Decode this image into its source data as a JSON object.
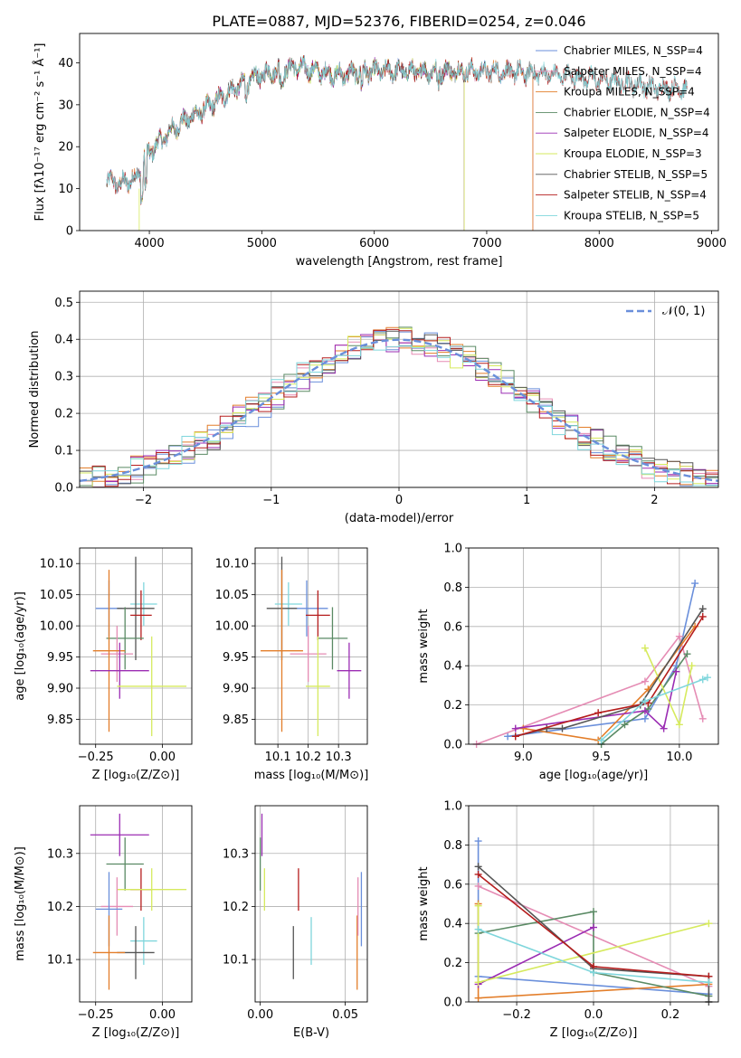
{
  "chart_data": [
    {
      "id": "spectrum",
      "type": "line",
      "title": "PLATE=0887, MJD=52376, FIBERID=0254, z=0.046",
      "xlabel": "wavelength [Angstrom, rest frame]",
      "ylabel": "Flux [fλ10⁻¹⁷ erg cm⁻² s⁻¹ Å⁻¹]",
      "xlim": [
        3380,
        9060
      ],
      "ylim": [
        0,
        47
      ],
      "xticks": [
        4000,
        5000,
        6000,
        7000,
        8000,
        9000
      ],
      "yticks": [
        0,
        10,
        20,
        30,
        40
      ],
      "legend_position": "top-right",
      "series": [
        {
          "name": "Chabrier MILES, N_SSP=4",
          "color": "#6a8fdb",
          "x_range": [
            3620,
            7410
          ]
        },
        {
          "name": "Salpeter MILES, N_SSP=4",
          "color": "#e58cb4",
          "x_range": [
            3620,
            7410
          ]
        },
        {
          "name": "Kroupa MILES, N_SSP=4",
          "color": "#e37e2a",
          "x_range": [
            3620,
            7410
          ]
        },
        {
          "name": "Chabrier ELODIE, N_SSP=4",
          "color": "#5a8a64",
          "x_range": [
            3900,
            6800
          ]
        },
        {
          "name": "Salpeter ELODIE, N_SSP=4",
          "color": "#9b2db3",
          "x_range": [
            3900,
            6800
          ]
        },
        {
          "name": "Kroupa ELODIE, N_SSP=3",
          "color": "#d6ea5e",
          "x_range": [
            3900,
            6800
          ]
        },
        {
          "name": "Chabrier STELIB, N_SSP=5",
          "color": "#555555",
          "x_range": [
            3620,
            8780
          ]
        },
        {
          "name": "Salpeter STELIB, N_SSP=4",
          "color": "#b51d1d",
          "x_range": [
            3620,
            8780
          ]
        },
        {
          "name": "Kroupa STELIB, N_SSP=5",
          "color": "#7fd6dc",
          "x_range": [
            3620,
            8780
          ]
        }
      ],
      "continuum": [
        [
          3620,
          12
        ],
        [
          3750,
          11
        ],
        [
          3900,
          13
        ],
        [
          3950,
          17
        ],
        [
          4050,
          20
        ],
        [
          4200,
          24
        ],
        [
          4300,
          26
        ],
        [
          4500,
          29
        ],
        [
          4700,
          33
        ],
        [
          4900,
          36
        ],
        [
          5100,
          38
        ],
        [
          5300,
          39
        ],
        [
          5500,
          38
        ],
        [
          5700,
          37
        ],
        [
          5900,
          38
        ],
        [
          6100,
          38
        ],
        [
          6300,
          38
        ],
        [
          6500,
          38
        ],
        [
          6700,
          38
        ],
        [
          6900,
          38
        ],
        [
          7100,
          38
        ],
        [
          7400,
          37.5
        ],
        [
          7700,
          37
        ],
        [
          8000,
          36
        ],
        [
          8300,
          35
        ],
        [
          8500,
          34
        ],
        [
          8780,
          34
        ]
      ]
    },
    {
      "id": "residuals",
      "type": "line",
      "xlabel": "(data-model)/error",
      "ylabel": "Normed distribution",
      "xlim": [
        -2.5,
        2.5
      ],
      "ylim": [
        0,
        0.53
      ],
      "xticks": [
        -2,
        -1,
        0,
        1,
        2
      ],
      "yticks": [
        0.0,
        0.1,
        0.2,
        0.3,
        0.4,
        0.5
      ],
      "grid": true,
      "legend_position": "top-right",
      "reference_curve": {
        "name": "𝒩(0, 1)",
        "color": "#6a8fdb",
        "style": "dashed"
      },
      "histogram_colors": [
        "#6a8fdb",
        "#e58cb4",
        "#e37e2a",
        "#5a8a64",
        "#9b2db3",
        "#d6ea5e",
        "#555555",
        "#b51d1d",
        "#7fd6dc"
      ],
      "bin_width": 0.1
    },
    {
      "id": "age_vs_Z",
      "type": "scatter",
      "xlabel": "Z [log₁₀(Z/Z⊙)]",
      "ylabel": "age  [log₁₀(age/yr)]",
      "xlim": [
        -0.31,
        0.11
      ],
      "ylim": [
        9.81,
        10.125
      ],
      "xticks": [
        -0.25,
        0.0
      ],
      "xtick_labels": [
        "−0.25",
        "0.00"
      ],
      "yticks": [
        9.85,
        9.9,
        9.95,
        10.0,
        10.05,
        10.1
      ],
      "grid": true,
      "points": [
        {
          "color": "#6a8fdb",
          "x": -0.2,
          "xerr": 0.05,
          "y": 10.028,
          "yerr": 0.045
        },
        {
          "color": "#7fd6dc",
          "x": -0.07,
          "xerr": 0.05,
          "y": 10.035,
          "yerr": 0.035
        },
        {
          "color": "#555555",
          "x": -0.1,
          "xerr": 0.07,
          "y": 10.028,
          "yerr": 0.083
        },
        {
          "color": "#b51d1d",
          "x": -0.08,
          "xerr": 0.04,
          "y": 10.017,
          "yerr": 0.04
        },
        {
          "color": "#5a8a64",
          "x": -0.14,
          "xerr": 0.07,
          "y": 9.98,
          "yerr": 0.05
        },
        {
          "color": "#e58cb4",
          "x": -0.17,
          "xerr": 0.06,
          "y": 9.955,
          "yerr": 0.045
        },
        {
          "color": "#e37e2a",
          "x": -0.2,
          "xerr": 0.06,
          "y": 9.96,
          "yerr": 0.13
        },
        {
          "color": "#9b2db3",
          "x": -0.16,
          "xerr": 0.11,
          "y": 9.928,
          "yerr": 0.045
        },
        {
          "color": "#d6ea5e",
          "x": -0.04,
          "xerr": 0.13,
          "y": 9.903,
          "yerr": 0.08
        }
      ]
    },
    {
      "id": "age_vs_mass",
      "type": "scatter",
      "xlabel": "mass [log₁₀(M/M⊙)]",
      "xlim": [
        10.025,
        10.395
      ],
      "ylim": [
        9.81,
        10.125
      ],
      "xticks": [
        10.1,
        10.2,
        10.3
      ],
      "yticks": [
        9.85,
        9.9,
        9.95,
        10.0,
        10.05,
        10.1
      ],
      "grid": true,
      "points": [
        {
          "color": "#6a8fdb",
          "x": 10.195,
          "xerr": 0.07,
          "y": 10.028,
          "yerr": 0.045
        },
        {
          "color": "#7fd6dc",
          "x": 10.135,
          "xerr": 0.045,
          "y": 10.035,
          "yerr": 0.035
        },
        {
          "color": "#555555",
          "x": 10.113,
          "xerr": 0.05,
          "y": 10.028,
          "yerr": 0.083
        },
        {
          "color": "#b51d1d",
          "x": 10.232,
          "xerr": 0.04,
          "y": 10.017,
          "yerr": 0.04
        },
        {
          "color": "#5a8a64",
          "x": 10.28,
          "xerr": 0.05,
          "y": 9.98,
          "yerr": 0.05
        },
        {
          "color": "#e58cb4",
          "x": 10.2,
          "xerr": 0.06,
          "y": 9.955,
          "yerr": 0.045
        },
        {
          "color": "#e37e2a",
          "x": 10.113,
          "xerr": 0.07,
          "y": 9.96,
          "yerr": 0.13
        },
        {
          "color": "#9b2db3",
          "x": 10.335,
          "xerr": 0.04,
          "y": 9.928,
          "yerr": 0.045
        },
        {
          "color": "#d6ea5e",
          "x": 10.232,
          "xerr": 0.04,
          "y": 9.903,
          "yerr": 0.08
        }
      ]
    },
    {
      "id": "weight_vs_age",
      "type": "line",
      "xlabel": "age  [log₁₀(age/yr)]",
      "ylabel": "mass weight",
      "xlim": [
        8.65,
        10.25
      ],
      "ylim": [
        0,
        1.0
      ],
      "xticks": [
        9.0,
        9.5,
        10.0
      ],
      "yticks": [
        0.0,
        0.2,
        0.4,
        0.6,
        0.8,
        1.0
      ],
      "grid": true,
      "series": [
        {
          "color": "#6a8fdb",
          "points": [
            [
              8.9,
              0.04
            ],
            [
              9.78,
              0.13
            ],
            [
              9.98,
              0.4
            ],
            [
              10.1,
              0.82
            ]
          ]
        },
        {
          "color": "#e58cb4",
          "points": [
            [
              8.7,
              0.0
            ],
            [
              9.78,
              0.32
            ],
            [
              10.0,
              0.55
            ],
            [
              10.15,
              0.13
            ]
          ]
        },
        {
          "color": "#e37e2a",
          "points": [
            [
              9.0,
              0.08
            ],
            [
              9.48,
              0.02
            ],
            [
              9.8,
              0.28
            ],
            [
              10.1,
              0.6
            ]
          ]
        },
        {
          "color": "#5a8a64",
          "points": [
            [
              9.5,
              0.0
            ],
            [
              9.65,
              0.1
            ],
            [
              9.8,
              0.18
            ],
            [
              10.05,
              0.46
            ]
          ]
        },
        {
          "color": "#9b2db3",
          "points": [
            [
              8.95,
              0.08
            ],
            [
              9.78,
              0.17
            ],
            [
              9.9,
              0.08
            ],
            [
              9.98,
              0.37
            ]
          ]
        },
        {
          "color": "#d6ea5e",
          "points": [
            [
              9.78,
              0.49
            ],
            [
              10.0,
              0.1
            ],
            [
              10.08,
              0.4
            ]
          ]
        },
        {
          "color": "#555555",
          "points": [
            [
              8.95,
              0.04
            ],
            [
              9.15,
              0.08
            ],
            [
              9.25,
              0.08
            ],
            [
              9.75,
              0.2
            ],
            [
              10.15,
              0.69
            ]
          ]
        },
        {
          "color": "#b51d1d",
          "points": [
            [
              8.95,
              0.04
            ],
            [
              9.48,
              0.16
            ],
            [
              9.8,
              0.21
            ],
            [
              10.15,
              0.65
            ]
          ]
        },
        {
          "color": "#7fd6dc",
          "points": [
            [
              9.5,
              0.02
            ],
            [
              9.78,
              0.22
            ],
            [
              10.15,
              0.33
            ],
            [
              10.18,
              0.34
            ]
          ]
        }
      ]
    },
    {
      "id": "mass_vs_Z",
      "type": "scatter",
      "xlabel": "Z [log₁₀(Z/Z⊙)]",
      "ylabel": "mass [log₁₀(M/M⊙)]",
      "xlim": [
        -0.31,
        0.11
      ],
      "ylim": [
        10.02,
        10.39
      ],
      "xticks": [
        -0.25,
        0.0
      ],
      "xtick_labels": [
        "−0.25",
        "0.00"
      ],
      "yticks": [
        10.1,
        10.2,
        10.3
      ],
      "grid": true,
      "points": [
        {
          "color": "#9b2db3",
          "x": -0.16,
          "xerr": 0.11,
          "y": 10.335,
          "yerr": 0.04
        },
        {
          "color": "#5a8a64",
          "x": -0.14,
          "xerr": 0.07,
          "y": 10.28,
          "yerr": 0.05
        },
        {
          "color": "#b51d1d",
          "x": -0.08,
          "xerr": 0.04,
          "y": 10.232,
          "yerr": 0.04
        },
        {
          "color": "#d6ea5e",
          "x": -0.04,
          "xerr": 0.13,
          "y": 10.232,
          "yerr": 0.04
        },
        {
          "color": "#e58cb4",
          "x": -0.17,
          "xerr": 0.06,
          "y": 10.2,
          "yerr": 0.055
        },
        {
          "color": "#6a8fdb",
          "x": -0.2,
          "xerr": 0.05,
          "y": 10.195,
          "yerr": 0.07
        },
        {
          "color": "#7fd6dc",
          "x": -0.07,
          "xerr": 0.05,
          "y": 10.135,
          "yerr": 0.045
        },
        {
          "color": "#555555",
          "x": -0.1,
          "xerr": 0.07,
          "y": 10.113,
          "yerr": 0.05
        },
        {
          "color": "#e37e2a",
          "x": -0.2,
          "xerr": 0.06,
          "y": 10.113,
          "yerr": 0.07
        }
      ]
    },
    {
      "id": "mass_vs_EBV",
      "type": "scatter",
      "xlabel": "E(B-V)",
      "xlim": [
        -0.003,
        0.063
      ],
      "ylim": [
        10.02,
        10.39
      ],
      "xticks": [
        0.0,
        0.05
      ],
      "xtick_labels": [
        "0.00",
        "0.05"
      ],
      "yticks": [
        10.1,
        10.2,
        10.3
      ],
      "grid": true,
      "points": [
        {
          "color": "#9b2db3",
          "x": 0.001,
          "y": 10.335,
          "yerr": 0.04
        },
        {
          "color": "#d6ea5e",
          "x": 0.0025,
          "y": 10.232,
          "yerr": 0.04
        },
        {
          "color": "#5a8a64",
          "x": 0.0,
          "y": 10.28,
          "yerr": 0.05
        },
        {
          "color": "#b51d1d",
          "x": 0.0225,
          "y": 10.232,
          "yerr": 0.04
        },
        {
          "color": "#555555",
          "x": 0.0195,
          "y": 10.113,
          "yerr": 0.05
        },
        {
          "color": "#7fd6dc",
          "x": 0.03,
          "y": 10.135,
          "yerr": 0.045
        },
        {
          "color": "#e37e2a",
          "x": 0.057,
          "y": 10.113,
          "yerr": 0.07
        },
        {
          "color": "#e58cb4",
          "x": 0.0575,
          "y": 10.2,
          "yerr": 0.055
        },
        {
          "color": "#6a8fdb",
          "x": 0.0595,
          "y": 10.195,
          "yerr": 0.07
        }
      ]
    },
    {
      "id": "weight_vs_Z",
      "type": "line",
      "xlabel": "Z [log₁₀(Z/Z⊙)]",
      "ylabel": "mass weight",
      "xlim": [
        -0.325,
        0.325
      ],
      "ylim": [
        0,
        1.0
      ],
      "xticks": [
        -0.2,
        0.0,
        0.2
      ],
      "xtick_labels": [
        "−0.2",
        "0.0",
        "0.2"
      ],
      "yticks": [
        0.0,
        0.2,
        0.4,
        0.6,
        0.8,
        1.0
      ],
      "grid": true,
      "series": [
        {
          "color": "#6a8fdb",
          "points": [
            [
              -0.3,
              0.82
            ],
            [
              -0.3,
              0.13
            ],
            [
              0.3,
              0.04
            ]
          ]
        },
        {
          "color": "#e58cb4",
          "points": [
            [
              -0.3,
              0.59
            ],
            [
              0.3,
              0.08
            ]
          ]
        },
        {
          "color": "#e37e2a",
          "points": [
            [
              -0.3,
              0.5
            ],
            [
              -0.3,
              0.02
            ],
            [
              0.3,
              0.09
            ]
          ]
        },
        {
          "color": "#5a8a64",
          "points": [
            [
              -0.3,
              0.35
            ],
            [
              0.0,
              0.46
            ],
            [
              0.0,
              0.15
            ],
            [
              0.3,
              0.03
            ]
          ]
        },
        {
          "color": "#9b2db3",
          "points": [
            [
              -0.3,
              0.09
            ],
            [
              0.0,
              0.38
            ]
          ]
        },
        {
          "color": "#d6ea5e",
          "points": [
            [
              -0.3,
              0.49
            ],
            [
              -0.3,
              0.1
            ],
            [
              0.3,
              0.4
            ]
          ]
        },
        {
          "color": "#555555",
          "points": [
            [
              -0.3,
              0.69
            ],
            [
              0.0,
              0.17
            ],
            [
              0.3,
              0.13
            ],
            [
              0.3,
              0.0
            ]
          ]
        },
        {
          "color": "#b51d1d",
          "points": [
            [
              -0.3,
              0.65
            ],
            [
              0.0,
              0.18
            ],
            [
              0.3,
              0.13
            ]
          ]
        },
        {
          "color": "#7fd6dc",
          "points": [
            [
              -0.3,
              0.37
            ],
            [
              0.0,
              0.15
            ],
            [
              0.3,
              0.1
            ]
          ]
        }
      ]
    }
  ]
}
